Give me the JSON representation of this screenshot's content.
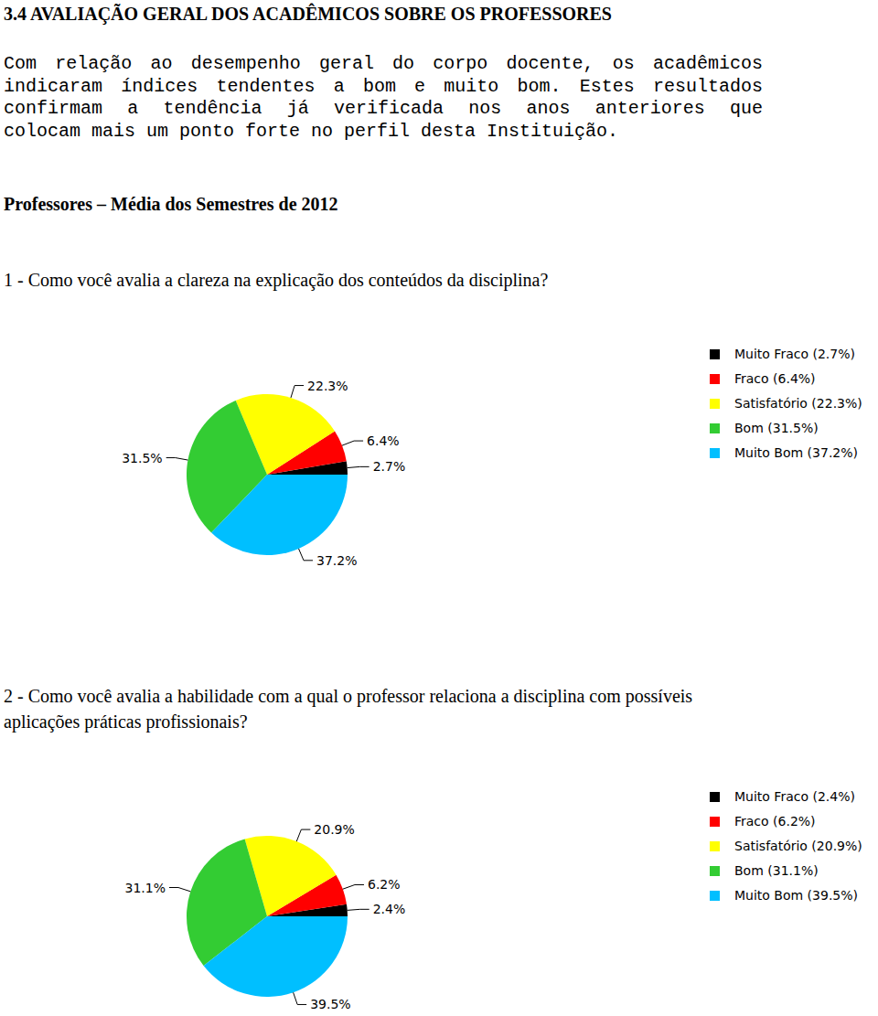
{
  "heading": "3.4 AVALIAÇÃO GERAL DOS ACADÊMICOS SOBRE OS PROFESSORES",
  "paragraph_lines": [
    "Com relação ao desempenho geral do corpo docente, os acadêmicos",
    "indicaram índices tendentes a bom e muito bom. Estes resultados",
    "confirmam a tendência já verificada nos anos anteriores que",
    "colocam mais um ponto forte no perfil desta Instituição."
  ],
  "subtitle": "Professores – Média dos Semestres de 2012",
  "chart_data": [
    {
      "type": "pie",
      "title": "1 - Como você avalia a clareza na explicação dos conteúdos da disciplina?",
      "categories": [
        "Muito Fraco (2.7%)",
        "Fraco (6.4%)",
        "Satisfatório (22.3%)",
        "Bom (31.5%)",
        "Muito Bom (37.2%)"
      ],
      "values": [
        2.7,
        6.4,
        22.3,
        31.5,
        37.2
      ],
      "value_labels": [
        "2.7%",
        "6.4%",
        "22.3%",
        "31.5%",
        "37.2%"
      ],
      "colors": [
        "#000000",
        "#ff0000",
        "#ffff00",
        "#33cc33",
        "#00bfff"
      ],
      "data_labels": true,
      "legend": "right"
    },
    {
      "type": "pie",
      "title": "2 - Como você avalia a habilidade com a qual o professor relaciona a disciplina com possíveis aplicações práticas profissionais?",
      "categories": [
        "Muito Fraco (2.4%)",
        "Fraco (6.2%)",
        "Satisfatório (20.9%)",
        "Bom (31.1%)",
        "Muito Bom (39.5%)"
      ],
      "values": [
        2.4,
        6.2,
        20.9,
        31.1,
        39.5
      ],
      "value_labels": [
        "2.4%",
        "6.2%",
        "20.9%",
        "31.1%",
        "39.5%"
      ],
      "colors": [
        "#000000",
        "#ff0000",
        "#ffff00",
        "#33cc33",
        "#00bfff"
      ],
      "data_labels": true,
      "legend": "right"
    }
  ]
}
